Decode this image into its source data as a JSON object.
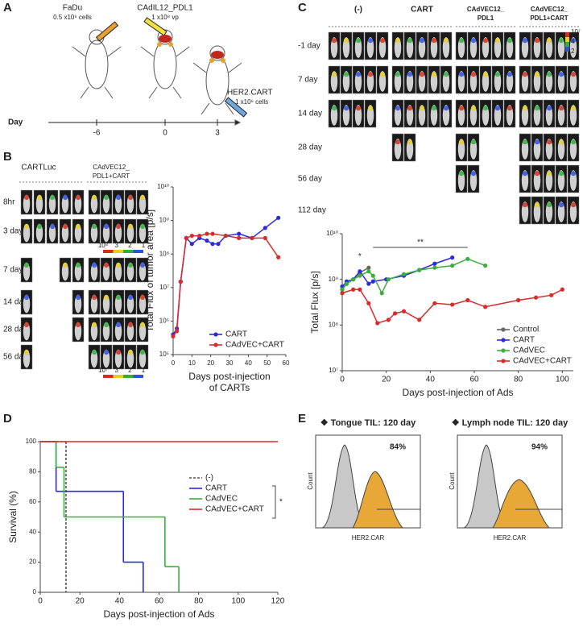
{
  "panel_a": {
    "letter": "A",
    "fadu": "FaDu",
    "fadu_dose": "0.5 x10⁶ cells",
    "virus": "CAdIL12_PDL1",
    "virus_dose": "1 x10⁸ vp",
    "cart": "HER2.CART",
    "cart_dose": "1 x10⁶ cells",
    "day_label": "Day",
    "days": [
      "-6",
      "0",
      "3"
    ]
  },
  "panel_b": {
    "letter": "B",
    "groups": [
      [
        "CARTLuc"
      ],
      [
        "CAdVEC12_",
        "PDL1+CART"
      ]
    ],
    "rows": [
      "8hr",
      "3 day",
      "7 day",
      "14 day",
      "28 day",
      "56 day"
    ],
    "colorbars": [
      [
        "10⁸",
        "3",
        "2",
        "1"
      ],
      [
        "10⁷",
        "3",
        "2",
        "1"
      ]
    ]
  },
  "panel_c": {
    "letter": "C",
    "groups": [
      [
        "(-)"
      ],
      [
        "CART"
      ],
      [
        "CAdVEC12_",
        "PDL1"
      ],
      [
        "CAdVEC12_",
        "PDL1+CART"
      ]
    ],
    "rows": [
      "-1 day",
      "7 day",
      "14 day",
      "28 day",
      "56 day",
      "112 day"
    ],
    "colorbar": [
      "10⁷",
      "4",
      "2"
    ]
  },
  "panel_d": {
    "letter": "D"
  },
  "panel_e": {
    "letter": "E",
    "plots": [
      {
        "title": "❖ Tongue TIL: 120 day",
        "percent": "84%",
        "xlabel": "HER2.CAR",
        "ylabel": "Count"
      },
      {
        "title": "❖ Lymph node TIL: 120 day",
        "percent": "94%",
        "xlabel": "HER2.CAR",
        "ylabel": "Count"
      }
    ]
  },
  "chart_data": [
    {
      "type": "line",
      "log": true,
      "ylabel": "Total Flux of tumor area [p/s]",
      "xlabel": [
        "Days post-injection",
        "of CARTs"
      ],
      "xlim": [
        0,
        60
      ],
      "xticks": [
        0,
        10,
        20,
        30,
        40,
        50,
        60
      ],
      "ylim": [
        100000,
        10000000000
      ],
      "yticks": [
        {
          "value": 100000,
          "label": "10⁵"
        },
        {
          "value": 1000000,
          "label": "10⁶"
        },
        {
          "value": 10000000,
          "label": "10⁷"
        },
        {
          "value": 100000000,
          "label": "10⁸"
        },
        {
          "value": 1000000000,
          "label": "10⁹"
        },
        {
          "value": 10000000000,
          "label": "10¹⁰"
        }
      ],
      "legend": "lower right",
      "series": [
        {
          "name": "CART",
          "color": "#2b2bd9",
          "x": [
            0,
            2,
            4,
            7,
            10,
            14,
            18,
            21,
            24,
            28,
            35,
            42,
            49,
            56
          ],
          "values": [
            400000,
            600000,
            15000000,
            300000000,
            200000000,
            300000000,
            250000000,
            200000000,
            200000000,
            350000000,
            400000000,
            300000000,
            600000000,
            1200000000
          ]
        },
        {
          "name": "CAdVEC+CART",
          "color": "#d92b2b",
          "x": [
            0,
            2,
            4,
            7,
            10,
            14,
            18,
            21,
            28,
            35,
            42,
            49,
            56
          ],
          "values": [
            350000,
            500000,
            15000000,
            300000000,
            350000000,
            350000000,
            400000000,
            400000000,
            350000000,
            300000000,
            300000000,
            300000000,
            80000000
          ]
        }
      ]
    },
    {
      "type": "line",
      "log": true,
      "ylabel": "Total Flux [p/s]",
      "xlabel": [
        "Days post-injection of Ads"
      ],
      "xlim": [
        0,
        105
      ],
      "xticks": [
        0,
        20,
        40,
        60,
        80,
        100
      ],
      "ylim": [
        10000000,
        10000000000
      ],
      "yticks": [
        {
          "value": 10000000,
          "label": "10⁷"
        },
        {
          "value": 100000000,
          "label": "10⁸"
        },
        {
          "value": 1000000000,
          "label": "10⁹"
        },
        {
          "value": 10000000000,
          "label": "10¹⁰"
        }
      ],
      "legend": "lower right",
      "annotations": [
        {
          "text": "*",
          "x": [
            8,
            8
          ],
          "y": 2500000000
        },
        {
          "text": "**",
          "x": [
            14,
            57
          ],
          "y": 5000000000
        }
      ],
      "series": [
        {
          "name": "Control",
          "color": "#666666",
          "x": [
            0,
            2,
            5,
            8,
            12
          ],
          "values": [
            600000000,
            800000000,
            1000000000,
            1400000000,
            1800000000
          ]
        },
        {
          "name": "CART",
          "color": "#2b2bd9",
          "x": [
            0,
            2,
            5,
            8,
            12,
            14,
            20,
            28,
            35,
            42,
            50
          ],
          "values": [
            700000000,
            900000000,
            1000000000,
            1500000000,
            800000000,
            900000000,
            1000000000,
            1200000000,
            1600000000,
            2200000000,
            3000000000
          ]
        },
        {
          "name": "CAdVEC",
          "color": "#3cae3c",
          "x": [
            0,
            2,
            5,
            8,
            12,
            14,
            18,
            21,
            28,
            35,
            42,
            50,
            57,
            65
          ],
          "values": [
            600000000,
            800000000,
            1000000000,
            1200000000,
            1500000000,
            1200000000,
            500000000,
            1000000000,
            1300000000,
            1600000000,
            1800000000,
            2000000000,
            2800000000,
            2000000000
          ]
        },
        {
          "name": "CAdVEC+CART",
          "color": "#d92b2b",
          "x": [
            0,
            5,
            8,
            12,
            16,
            21,
            24,
            28,
            35,
            42,
            50,
            57,
            65,
            80,
            88,
            95,
            100
          ],
          "values": [
            500000000,
            600000000,
            600000000,
            300000000,
            110000000,
            130000000,
            180000000,
            200000000,
            130000000,
            300000000,
            280000000,
            350000000,
            250000000,
            350000000,
            400000000,
            450000000,
            600000000
          ]
        }
      ]
    },
    {
      "type": "step",
      "log": false,
      "ylabel": "Survival (%)",
      "xlabel": [
        "Days post-injection of Ads"
      ],
      "xlim": [
        0,
        120
      ],
      "xticks": [
        0,
        20,
        40,
        60,
        80,
        100,
        120
      ],
      "ylim": [
        0,
        100
      ],
      "yticks": [
        0,
        20,
        40,
        60,
        80,
        100
      ],
      "legend": "center right",
      "annotations": [
        {
          "text": "*"
        }
      ],
      "series": [
        {
          "name": "(-)",
          "color": "#555555",
          "dash": true,
          "x": [
            0,
            13
          ],
          "values": [
            100,
            0
          ]
        },
        {
          "name": "CART",
          "color": "#2b2bd9",
          "x": [
            0,
            8,
            42,
            52
          ],
          "values": [
            100,
            67,
            20,
            0
          ]
        },
        {
          "name": "CAdVEC",
          "color": "#3cae3c",
          "x": [
            0,
            8,
            12,
            63,
            70
          ],
          "values": [
            100,
            83,
            50,
            17,
            0
          ]
        },
        {
          "name": "CAdVEC+CART",
          "color": "#d92b2b",
          "x": [
            0,
            120
          ],
          "values": [
            100,
            100
          ]
        }
      ]
    }
  ]
}
